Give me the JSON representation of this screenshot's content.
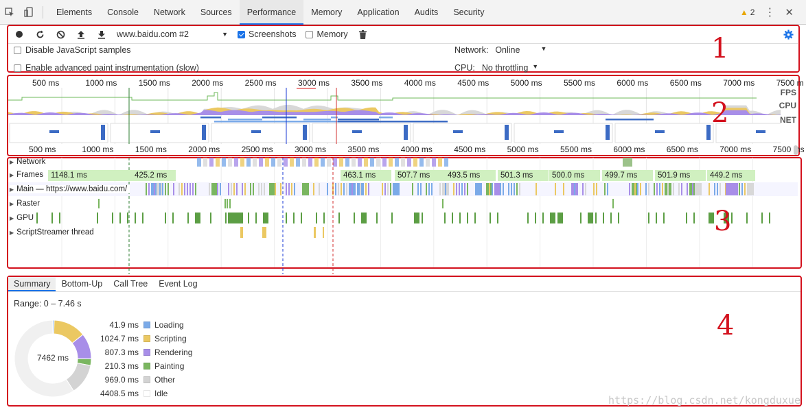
{
  "tabbar": {
    "tabs": [
      "Elements",
      "Console",
      "Network",
      "Sources",
      "Performance",
      "Memory",
      "Application",
      "Audits",
      "Security"
    ],
    "active_tab": "Performance",
    "warning_count": "2"
  },
  "toolbar": {
    "profile_select": "www.baidu.com #2",
    "screenshots_label": "Screenshots",
    "screenshots_checked": true,
    "memory_label": "Memory",
    "memory_checked": false
  },
  "settings": {
    "disable_js_label": "Disable JavaScript samples",
    "enable_paint_label": "Enable advanced paint instrumentation (slow)",
    "network_label": "Network:",
    "network_value": "Online",
    "cpu_label": "CPU:",
    "cpu_value": "No throttling"
  },
  "overview": {
    "ticks": [
      "500 ms",
      "1000 ms",
      "1500 ms",
      "2000 ms",
      "2500 ms",
      "3000 ms",
      "3500 ms",
      "4000 ms",
      "4500 ms",
      "5000 ms",
      "5500 ms",
      "6000 ms",
      "6500 ms",
      "7000 ms",
      "7500 m"
    ],
    "ticks_bottom": [
      "500 ms",
      "1000 ms",
      "1500 ms",
      "2000 ms",
      "2500 ms",
      "3000 ms",
      "3500 ms",
      "4000 ms",
      "4500 ms",
      "5000 ms",
      "5500 ms",
      "6000 ms",
      "6500 ms",
      "7000 ms",
      "7500 ms"
    ],
    "lane_fps": "FPS",
    "lane_cpu": "CPU",
    "lane_net": "NET"
  },
  "tracks": {
    "network": "Network",
    "frames": "Frames",
    "main": "Main — https://www.baidu.com/",
    "raster": "Raster",
    "gpu": "GPU",
    "scriptstreamer": "ScriptStreamer thread",
    "frame_times": [
      "1148.1 ms",
      "425.2 ms",
      "463.1 ms",
      "507.7 ms",
      "493.5 ms",
      "501.3 ms",
      "500.0 ms",
      "499.7 ms",
      "501.9 ms",
      "449.2 ms"
    ]
  },
  "bottom_tabs": [
    "Summary",
    "Bottom-Up",
    "Call Tree",
    "Event Log"
  ],
  "summary": {
    "range": "Range: 0 – 7.46 s",
    "total": "7462 ms",
    "items": [
      {
        "value": "41.9 ms",
        "label": "Loading",
        "color": "#7baae8"
      },
      {
        "value": "1024.7 ms",
        "label": "Scripting",
        "color": "#ebc862"
      },
      {
        "value": "807.3 ms",
        "label": "Rendering",
        "color": "#a88ee8"
      },
      {
        "value": "210.3 ms",
        "label": "Painting",
        "color": "#7ab660"
      },
      {
        "value": "969.0 ms",
        "label": "Other",
        "color": "#d3d3d3"
      },
      {
        "value": "4408.5 ms",
        "label": "Idle",
        "color": "#ffffff"
      }
    ]
  },
  "annotations": {
    "n1": "1",
    "n2": "2",
    "n3": "3",
    "n4": "4"
  },
  "watermark": "https://blog.csdn.net/kongduxue"
}
